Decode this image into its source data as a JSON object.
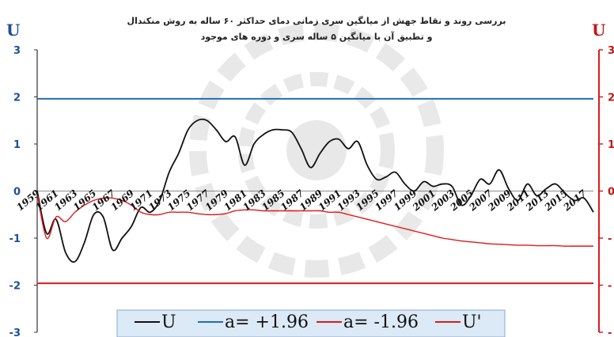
{
  "chart_data": {
    "type": "line",
    "title_lines": [
      "بررسی روند و نقاط جهش از میانگین سری زمانی دمای حداکثر ۶۰ ساله به روش منکندال",
      "و تطبیق آن با میانگین ۵ ساله سری و دوره های موجود"
    ],
    "left_axis_label": "U",
    "right_axis_label": "U",
    "ylim": [
      -3,
      3
    ],
    "y_ticks": [
      "3",
      "2",
      "1",
      "0",
      "-1",
      "-2",
      "-3"
    ],
    "right_y_ticks": [
      "3",
      "2",
      "1",
      "0",
      "-",
      "-",
      "-"
    ],
    "x_tick_labels": [
      "1959",
      "1961",
      "1963",
      "1965",
      "1967",
      "1969",
      "1971",
      "1973",
      "1975",
      "1977",
      "1979",
      "1981",
      "1983",
      "1985",
      "1987",
      "1989",
      "1991",
      "1993",
      "1995",
      "1997",
      "1999",
      "2001",
      "2003",
      "2005",
      "2007",
      "2009",
      "2011",
      "2013",
      "2015",
      "2017"
    ],
    "xlim": [
      1959,
      2018
    ],
    "thresholds": [
      {
        "name": "a= +1.96",
        "value": 1.96,
        "color": "#1f6fb5"
      },
      {
        "name": "a= -1.96",
        "value": -1.96,
        "color": "#e0191b"
      }
    ],
    "series": [
      {
        "name": "U",
        "color": "#111111",
        "x": [
          1959,
          1960,
          1961,
          1962,
          1963,
          1964,
          1965,
          1966,
          1967,
          1968,
          1969,
          1970,
          1971,
          1972,
          1973,
          1974,
          1975,
          1976,
          1977,
          1978,
          1979,
          1980,
          1981,
          1982,
          1983,
          1984,
          1985,
          1986,
          1987,
          1988,
          1989,
          1990,
          1991,
          1992,
          1993,
          1994,
          1995,
          1996,
          1997,
          1998,
          1999,
          2000,
          2001,
          2002,
          2003,
          2004,
          2005,
          2006,
          2007,
          2008,
          2009,
          2010,
          2011,
          2012,
          2013,
          2014,
          2015,
          2016,
          2017,
          2018
        ],
        "values": [
          0,
          -0.9,
          -0.6,
          -1.3,
          -1.5,
          -1.1,
          -0.5,
          -0.55,
          -1.25,
          -1.0,
          -0.75,
          -0.35,
          -0.45,
          -0.2,
          0.4,
          0.8,
          1.3,
          1.5,
          1.5,
          1.3,
          1.05,
          1.15,
          0.55,
          1.0,
          1.2,
          1.3,
          1.3,
          1.25,
          0.9,
          0.5,
          0.8,
          1.05,
          1.1,
          0.9,
          1.05,
          0.55,
          0.25,
          0.3,
          0.4,
          0.15,
          0.0,
          0.2,
          0.1,
          0.15,
          0.1,
          -0.3,
          -0.1,
          0.25,
          0.15,
          0.45,
          0.05,
          -0.2,
          0.15,
          -0.1,
          0.05,
          0.15,
          -0.05,
          -0.2,
          -0.15,
          -0.45
        ]
      },
      {
        "name": "U'",
        "color": "#e0191b",
        "x": [
          1959,
          1960,
          1961,
          1962,
          1963,
          1964,
          1965,
          1966,
          1967,
          1968,
          1969,
          1970,
          1971,
          1972,
          1973,
          1974,
          1975,
          1976,
          1977,
          1978,
          1979,
          1980,
          1981,
          1982,
          1983,
          1984,
          1985,
          1986,
          1987,
          1988,
          1989,
          1990,
          1991,
          1992,
          1993,
          1994,
          1995,
          1996,
          1997,
          1998,
          1999,
          2000,
          2001,
          2002,
          2003,
          2004,
          2005,
          2006,
          2007,
          2008,
          2009,
          2010,
          2011,
          2012,
          2013,
          2014,
          2015,
          2016,
          2017,
          2018
        ],
        "values": [
          -0.05,
          -1.0,
          -0.55,
          -0.65,
          -0.45,
          -0.3,
          -0.2,
          -0.15,
          -0.15,
          -0.2,
          -0.3,
          -0.45,
          -0.5,
          -0.5,
          -0.45,
          -0.45,
          -0.45,
          -0.48,
          -0.5,
          -0.5,
          -0.48,
          -0.42,
          -0.4,
          -0.4,
          -0.42,
          -0.42,
          -0.42,
          -0.42,
          -0.42,
          -0.42,
          -0.42,
          -0.45,
          -0.45,
          -0.5,
          -0.55,
          -0.6,
          -0.65,
          -0.7,
          -0.75,
          -0.8,
          -0.85,
          -0.9,
          -0.95,
          -1.0,
          -1.03,
          -1.06,
          -1.08,
          -1.1,
          -1.12,
          -1.13,
          -1.14,
          -1.15,
          -1.15,
          -1.16,
          -1.16,
          -1.16,
          -1.17,
          -1.17,
          -1.17,
          -1.17
        ]
      }
    ],
    "legend": {
      "position": "bottom",
      "items": [
        {
          "label": "U",
          "color": "#111111"
        },
        {
          "label": "a= +1.96",
          "color": "#1f6fb5"
        },
        {
          "label": "a= -1.96",
          "color": "#e0191b"
        },
        {
          "label": "U'",
          "color": "#e0191b"
        }
      ]
    },
    "grid": false
  }
}
